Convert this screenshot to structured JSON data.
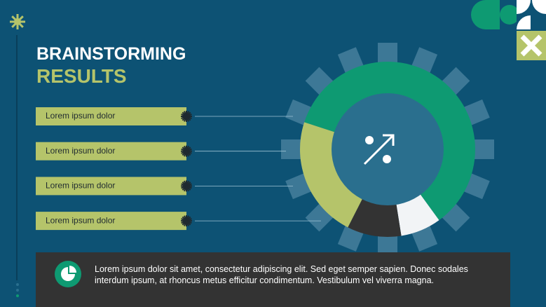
{
  "header": {
    "title_line1": "BRAINSTORMING",
    "title_line2": "RESULTS"
  },
  "chart_data": {
    "type": "donut",
    "categories": [
      "Lorem ipsum dolor",
      "Lorem ipsum dolor",
      "Lorem ipsum dolor",
      "Lorem ipsum dolor"
    ],
    "values": [
      60,
      7.5,
      10,
      22.5
    ],
    "colors": [
      "#0e9a72",
      "#f2f4f6",
      "#333333",
      "#b5c46a"
    ]
  },
  "footer": {
    "text_line1": "Lorem ipsum dolor sit amet, consectetur adipiscing elit. Sed eget semper sapien. Donec sodales",
    "text_line2": "interdum ipsum, at rhoncus metus efficitur condimentum. Vestibulum vel viverra magna."
  }
}
